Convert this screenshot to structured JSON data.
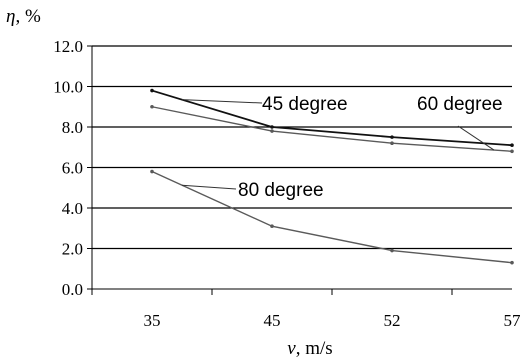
{
  "chart_data": {
    "type": "line",
    "x": [
      "35",
      "45",
      "52",
      "57"
    ],
    "series": [
      {
        "name": "45 degree",
        "values": [
          9.8,
          8.0,
          7.5,
          7.1
        ]
      },
      {
        "name": "60 degree",
        "values": [
          9.0,
          7.8,
          7.2,
          6.8
        ]
      },
      {
        "name": "80 degree",
        "values": [
          5.8,
          3.1,
          1.9,
          1.3
        ]
      }
    ],
    "y_tick_labels": [
      "0.0",
      "2.0",
      "4.0",
      "6.0",
      "8.0",
      "10.0",
      "12.0"
    ],
    "ylim": [
      0,
      12
    ],
    "xlabel_symbol": "v",
    "xlabel_unit": ", m/s",
    "ylabel_symbol": "η",
    "ylabel_unit": ", %",
    "grid": "horizontal",
    "legend": "inline labels with leader lines",
    "colors": {
      "series_lines": "#5a5a5a",
      "series_dark": "#111111",
      "gridlines": "#000000"
    }
  }
}
